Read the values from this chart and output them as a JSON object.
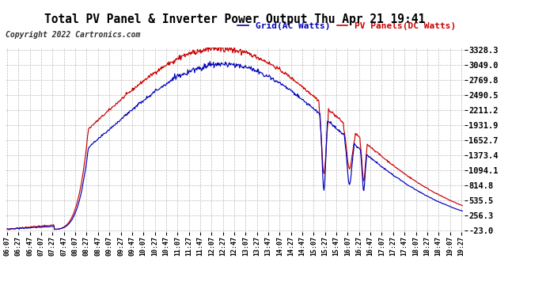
{
  "title": "Total PV Panel & Inverter Power Output Thu Apr 21 19:41",
  "copyright": "Copyright 2022 Cartronics.com",
  "legend_blue": "Grid(AC Watts)",
  "legend_red": "PV Panels(DC Watts)",
  "yticks": [
    3328.3,
    3049.0,
    2769.8,
    2490.5,
    2211.2,
    1931.9,
    1652.7,
    1373.4,
    1094.1,
    814.8,
    535.5,
    256.3,
    -23.0
  ],
  "ymin": -23.0,
  "ymax": 3328.3,
  "background_color": "#ffffff",
  "grid_color": "#bbbbbb",
  "blue_color": "#0000bb",
  "red_color": "#cc0000",
  "title_color": "#000000",
  "title_fontsize": 10.5,
  "copyright_fontsize": 7,
  "ytick_fontsize": 7.5,
  "xtick_fontsize": 6,
  "legend_fontsize": 8
}
